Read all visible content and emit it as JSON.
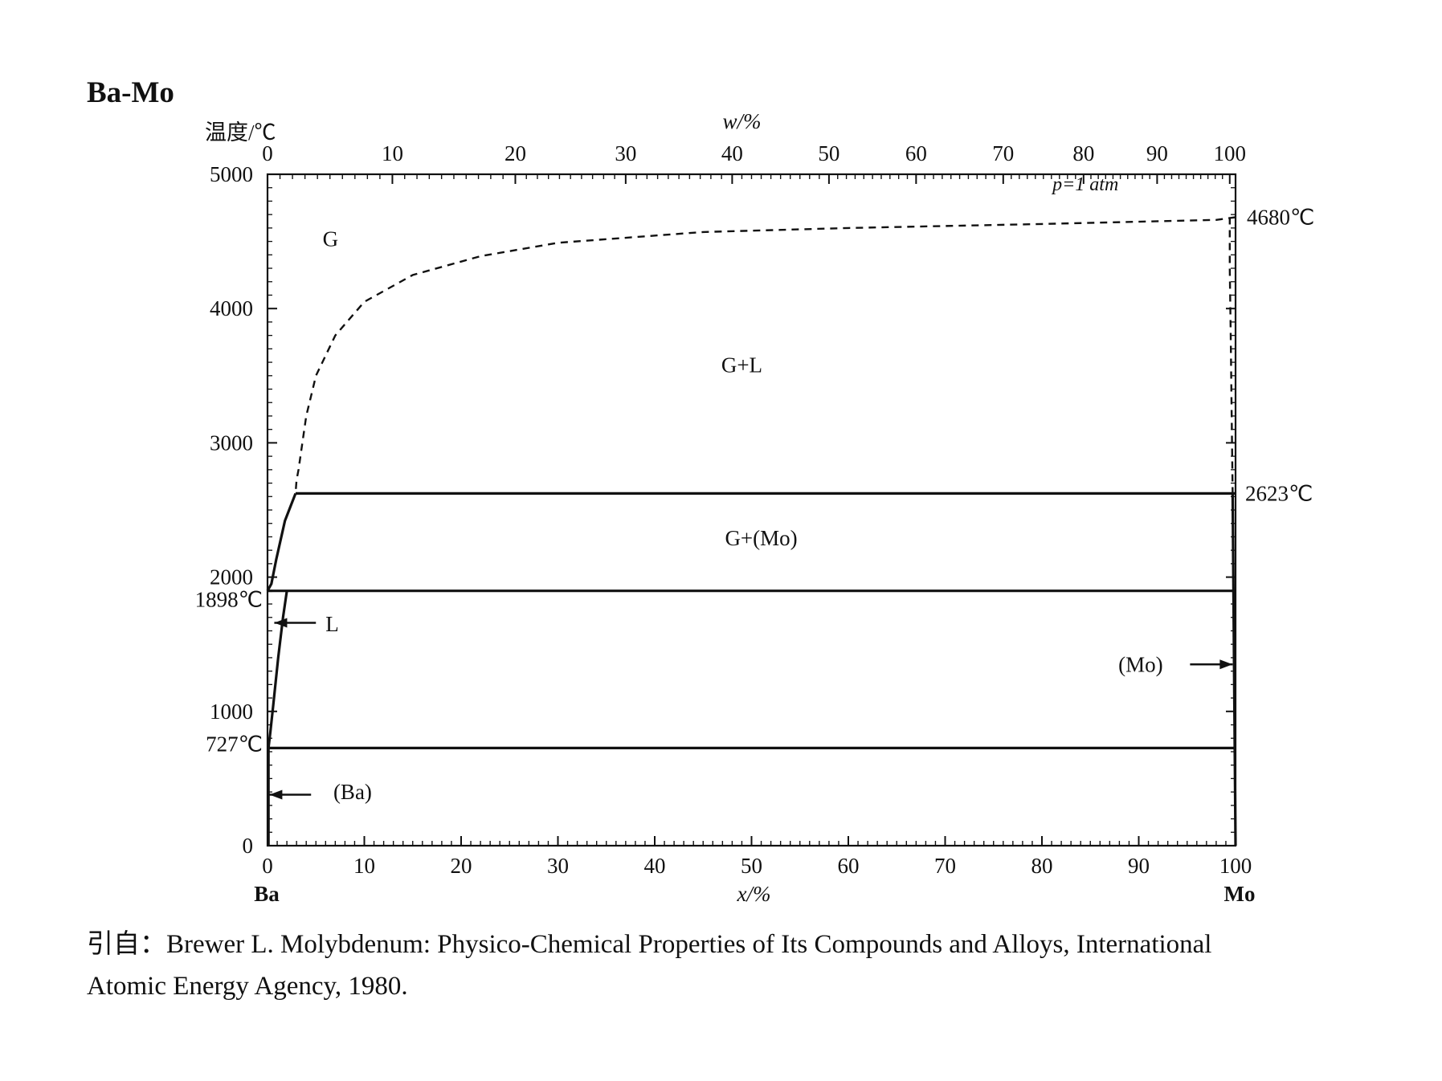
{
  "title": "Ba-Mo",
  "chart_data": {
    "type": "line",
    "ylabel": "温度/℃",
    "xlabel_bottom": "x/%",
    "xlabel_top": "w/%",
    "xlim": [
      0,
      100
    ],
    "ylim": [
      0,
      5000
    ],
    "x_ticks": [
      "0",
      "10",
      "20",
      "30",
      "40",
      "50",
      "60",
      "70",
      "80",
      "90",
      "100"
    ],
    "y_ticks": [
      "0",
      "1000",
      "2000",
      "3000",
      "4000",
      "5000"
    ],
    "top_ticks": [
      "0",
      "10",
      "20",
      "30",
      "40",
      "50",
      "60",
      "70",
      "80",
      "90",
      "100"
    ],
    "top_tick_positions_x": [
      0,
      12.9,
      25.6,
      37.0,
      48.0,
      58.0,
      67.0,
      76.0,
      84.3,
      91.9,
      99.4
    ],
    "left_element": "Ba",
    "right_element": "Mo",
    "pressure_note": "p=1 atm",
    "series": [
      {
        "style": "dashed",
        "x": [
          100,
          98,
          80,
          60,
          45,
          30,
          22,
          15,
          10,
          7,
          5,
          4,
          3.6,
          3.2,
          3.0,
          2.9
        ],
        "y": [
          4680,
          4660,
          4630,
          4600,
          4570,
          4490,
          4390,
          4250,
          4050,
          3800,
          3500,
          3200,
          3000,
          2800,
          2720,
          2623
        ]
      },
      {
        "style": "dashed",
        "x": [
          99.4,
          99.4,
          99.5,
          99.6,
          99.7
        ],
        "y": [
          4680,
          4300,
          3800,
          3200,
          2623
        ]
      },
      {
        "style": "solid",
        "x": [
          2.9,
          100
        ],
        "y": [
          2623,
          2623
        ]
      },
      {
        "style": "solid",
        "x": [
          0,
          0.4,
          0.9,
          1.8,
          2.9
        ],
        "y": [
          1898,
          1950,
          2130,
          2420,
          2623
        ]
      },
      {
        "style": "solid",
        "x": [
          0.5,
          100
        ],
        "y": [
          1898,
          1898
        ]
      },
      {
        "style": "solid",
        "x": [
          0,
          0.5
        ],
        "y": [
          1898,
          1898
        ]
      },
      {
        "style": "solid",
        "x": [
          2.0,
          1.6,
          1.1,
          0.6,
          0.3,
          0.1
        ],
        "y": [
          1898,
          1700,
          1400,
          1050,
          850,
          727
        ]
      },
      {
        "style": "solid",
        "x": [
          0.1,
          100
        ],
        "y": [
          727,
          727
        ]
      },
      {
        "style": "solid",
        "x": [
          0.1,
          0.1
        ],
        "y": [
          0,
          727
        ]
      },
      {
        "style": "solid",
        "x": [
          99.7,
          100
        ],
        "y": [
          2623,
          0
        ]
      }
    ],
    "annotations": [
      {
        "text": "4680℃",
        "x": 100,
        "y": 4680
      },
      {
        "text": "2623℃",
        "x": 100,
        "y": 2623
      },
      {
        "text": "1898℃",
        "x": 0,
        "y": 1898
      },
      {
        "text": "727℃",
        "x": 0,
        "y": 727
      }
    ],
    "region_labels": [
      {
        "text": "G",
        "x": 6.5,
        "y": 4520
      },
      {
        "text": "G+L",
        "x": 49,
        "y": 3580
      },
      {
        "text": "G+(Mo)",
        "x": 51,
        "y": 2290
      },
      {
        "text": "L",
        "x": 6,
        "y": 1650
      },
      {
        "text": "(Mo)",
        "x": 92.5,
        "y": 1350
      },
      {
        "text": "(Ba)",
        "x": 6.8,
        "y": 400
      }
    ],
    "arrows": [
      {
        "from": [
          5.0,
          1660
        ],
        "to": [
          0.7,
          1660
        ]
      },
      {
        "from": [
          4.5,
          380
        ],
        "to": [
          0.2,
          380
        ]
      },
      {
        "from": [
          95.3,
          1350
        ],
        "to": [
          99.7,
          1350
        ]
      }
    ]
  },
  "citation": {
    "line1": "引自：Brewer L. Molybdenum: Physico-Chemical Properties of Its Compounds and Alloys, International",
    "line2": "Atomic Energy Agency, 1980."
  }
}
